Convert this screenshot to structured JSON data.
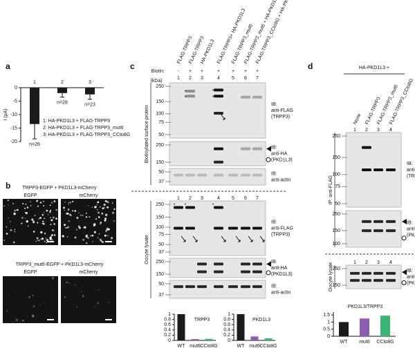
{
  "panel_labels": [
    "a",
    "b",
    "c",
    "d"
  ],
  "chart_data": [
    {
      "type": "bar",
      "y_label": "I (μA)",
      "categories": [
        "1",
        "2",
        "3"
      ],
      "values": [
        -13.5,
        -2,
        -2.5
      ],
      "errors": [
        5.5,
        1.5,
        1.8
      ],
      "color": "#1a1a1a",
      "ylim": [
        -20,
        0
      ],
      "yticks": [
        -20,
        -15,
        -10,
        -5,
        0
      ],
      "n_labels": [
        "n=26",
        "n=28",
        "n=23"
      ],
      "notes": [
        "1: HA-PKD1L3 + FLAG-TRPP3",
        "2: HA-PKD1L3 + FLAG-TRPP3_mut6",
        "3: HA-PKD1L3 + FLAG-TRPP3_CCto8G"
      ]
    },
    {
      "type": "bar",
      "title": "TRPP3",
      "categories": [
        "WT",
        "mut6",
        "CCto8G"
      ],
      "values": [
        1,
        0.05,
        0.06
      ],
      "colors": [
        "#1a1a1a",
        "#8e5db0",
        "#3cb371"
      ],
      "ylim": [
        0,
        1
      ],
      "yticks": [
        0,
        0.2,
        0.4,
        0.6,
        0.8,
        1
      ]
    },
    {
      "type": "bar",
      "title": "PKD1L3",
      "categories": [
        "WT",
        "mut6",
        "CCto8G"
      ],
      "values": [
        1,
        0.15,
        0.08
      ],
      "colors": [
        "#1a1a1a",
        "#8e5db0",
        "#3cb371"
      ],
      "ylim": [
        0,
        1
      ],
      "yticks": [
        0,
        0.2,
        0.4,
        0.6,
        0.8,
        1
      ]
    },
    {
      "type": "bar",
      "title": "PKD1L3/TRPP3",
      "categories": [
        "WT",
        "mut6",
        "CCto8G"
      ],
      "values": [
        1,
        1.25,
        1.45
      ],
      "colors": [
        "#1a1a1a",
        "#8e5db0",
        "#3cb371"
      ],
      "ylim": [
        0,
        1.7
      ],
      "yticks": [
        0,
        0.5,
        1,
        1.5
      ]
    }
  ],
  "panel_b": {
    "rows": [
      {
        "title": "TRPP3-EGFP + PKD1L3-mCherry",
        "channels": [
          "EGFP",
          "mCherry"
        ]
      },
      {
        "title": "TRPP3_mut6-EGFP + PKD1L3-mCherry",
        "channels": [
          "EGFP",
          "mCherry"
        ]
      }
    ]
  },
  "panel_c": {
    "lanes": [
      "FLAG-TRPP3",
      "FLAG-TRPP3",
      "HA-PKD1L3",
      "FLAG-TRPP3+ HA-PKD1L3",
      "FLAG-TRPP3_mut6",
      "FLAG-TRPP3_mut6 + HA-PKD1L3",
      "FLAG-TRPP3_CCto8G + HA-PKD1L3"
    ],
    "biotin_label": "Biotin:",
    "biotin": [
      "-",
      "+",
      "+",
      "+",
      "+",
      "+",
      "+"
    ],
    "lane_numbers": [
      "1",
      "2",
      "3",
      "4",
      "5",
      "6",
      "7"
    ],
    "kda": "(kDa)",
    "star": "*",
    "sections": [
      {
        "label": "Biotinylated surface protein",
        "blots": [
          {
            "markers": [
              250,
              150,
              100,
              75,
              50
            ],
            "ib": [
              "IB:",
              "anti-FLAG",
              "(TRPP3)"
            ]
          },
          {
            "markers": [
              250,
              150
            ],
            "ib": [
              "IB:",
              "anti-HA",
              "(PKD1L3)"
            ]
          },
          {
            "markers": [
              50,
              37
            ],
            "ib": [
              "IB:",
              "anti-actin"
            ]
          }
        ]
      },
      {
        "label": "Oocyte lysate",
        "blots": [
          {
            "markers": [
              250,
              150,
              100,
              75,
              50,
              37
            ],
            "ib": [
              "IB:",
              "anti-FLAG",
              "(TRPP3)"
            ]
          },
          {
            "markers": [
              250,
              150
            ],
            "ib": [
              "IB:",
              "anti-HA",
              "(PKD1L3)"
            ]
          },
          {
            "markers": [
              50,
              37
            ],
            "ib": [
              "IB:",
              "anti-actin"
            ]
          }
        ]
      }
    ]
  },
  "panel_d": {
    "header": "HA-PKD1L3 +",
    "lanes": [
      "None",
      "FLAG-TRPP3",
      "FLAG-TRPP3_mut6",
      "FLAG-TRPP3_CCto8G"
    ],
    "lane_numbers": [
      "1",
      "2",
      "3",
      "4"
    ],
    "sections": [
      {
        "label": "IP: anti-FLAG",
        "blots": [
          {
            "markers": [
              250,
              150,
              100,
              75,
              50
            ],
            "ib": [
              "IB:",
              "anti-FLAG",
              "(TRPP3)"
            ]
          },
          {
            "markers": [
              250,
              150,
              100
            ],
            "ib": [
              "IB:",
              "anti-HA",
              "(PKD1L3)"
            ]
          }
        ]
      },
      {
        "label": "Oocyte lysate",
        "blots": [
          {
            "markers": [
              250,
              150
            ],
            "ib": [
              "IB:",
              "anti-HA",
              "(PKD1L3)"
            ]
          }
        ]
      }
    ]
  }
}
